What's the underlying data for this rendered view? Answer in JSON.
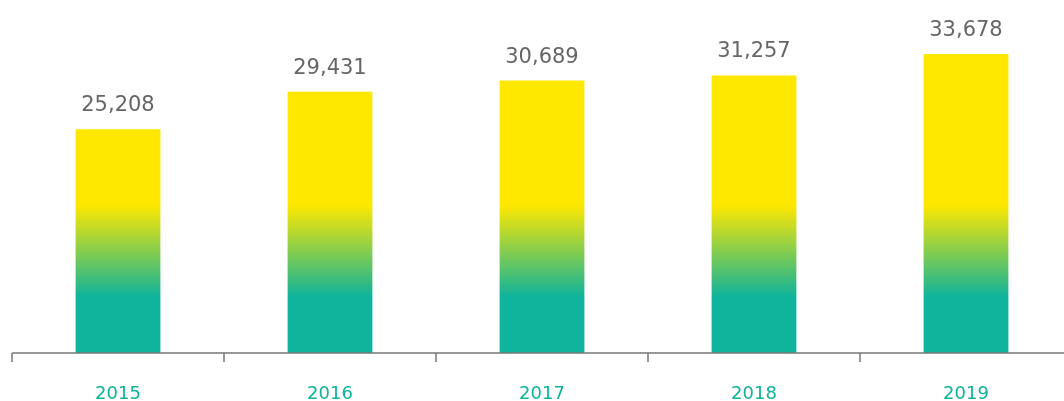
{
  "chart_data": {
    "type": "bar",
    "categories": [
      "2015",
      "2016",
      "2017",
      "2018",
      "2019"
    ],
    "values": [
      25208,
      29431,
      30689,
      31257,
      33678
    ],
    "color": "#ffe800",
    "data_labels": true,
    "value_labels": [
      "25,208",
      "29,431",
      "30,689",
      "31,257",
      "33,678"
    ]
  }
}
